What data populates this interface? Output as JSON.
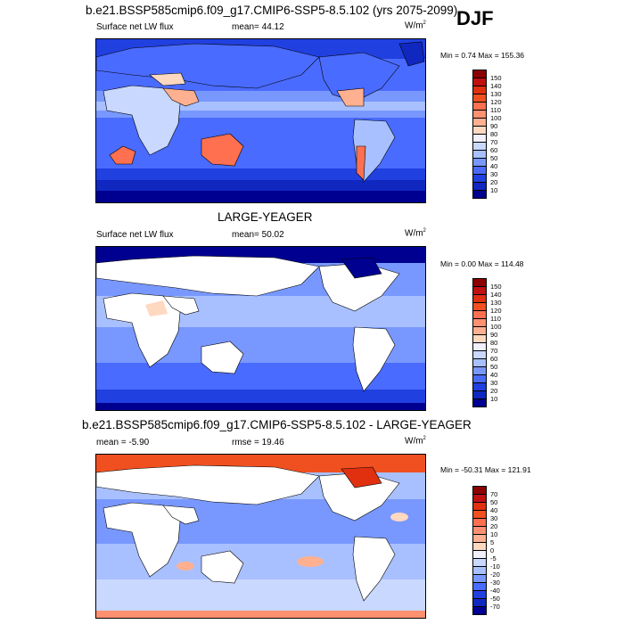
{
  "header": {
    "main_title": "b.e21.BSSP585cmip6.f09_g17.CMIP6-SSP5-8.5.102 (yrs 2075-2099)",
    "season": "DJF"
  },
  "panels": [
    {
      "title": "",
      "left_label": "Surface net LW flux",
      "center_label": "mean=  44.12",
      "units": "W/m",
      "units_sup": "2",
      "minmax": "Min =   0.74 Max = 155.36",
      "colorbar": {
        "levels": [
          "150",
          "140",
          "130",
          "120",
          "110",
          "100",
          "90",
          "80",
          "70",
          "60",
          "50",
          "40",
          "30",
          "20",
          "10"
        ],
        "colors": [
          "#8b0000",
          "#c01010",
          "#e03010",
          "#f05020",
          "#ff7050",
          "#ff9070",
          "#ffb090",
          "#ffd8c0",
          "#f0f0ff",
          "#c8d8ff",
          "#a8c0ff",
          "#7898ff",
          "#4a6bff",
          "#2040e0",
          "#1028c0",
          "#000090"
        ]
      }
    },
    {
      "title": "LARGE-YEAGER",
      "left_label": "Surface net LW flux",
      "center_label": "mean=  50.02",
      "units": "W/m",
      "units_sup": "2",
      "minmax": "Min =   0.00 Max = 114.48",
      "colorbar": {
        "levels": [
          "150",
          "140",
          "130",
          "120",
          "110",
          "100",
          "90",
          "80",
          "70",
          "60",
          "50",
          "40",
          "30",
          "20",
          "10"
        ],
        "colors": [
          "#8b0000",
          "#c01010",
          "#e03010",
          "#f05020",
          "#ff7050",
          "#ff9070",
          "#ffb090",
          "#ffd8c0",
          "#f0f0ff",
          "#c8d8ff",
          "#a8c0ff",
          "#7898ff",
          "#4a6bff",
          "#2040e0",
          "#1028c0",
          "#000090"
        ]
      }
    },
    {
      "title": "b.e21.BSSP585cmip6.f09_g17.CMIP6-SSP5-8.5.102 - LARGE-YEAGER",
      "left_label": "mean =  -5.90",
      "center_label": "rmse =  19.46",
      "units": "W/m",
      "units_sup": "2",
      "minmax": "Min = -50.31 Max = 121.91",
      "colorbar": {
        "levels": [
          "70",
          "50",
          "40",
          "30",
          "20",
          "10",
          "5",
          "0",
          "-5",
          "-10",
          "-20",
          "-30",
          "-40",
          "-50",
          "-70"
        ],
        "colors": [
          "#8b0000",
          "#c01010",
          "#e03010",
          "#f05020",
          "#ff7050",
          "#ff9070",
          "#ffb090",
          "#ffd8c0",
          "#f0f0ff",
          "#c8d8ff",
          "#a8c0ff",
          "#7898ff",
          "#4a6bff",
          "#2040e0",
          "#1028c0",
          "#000090"
        ]
      }
    }
  ]
}
